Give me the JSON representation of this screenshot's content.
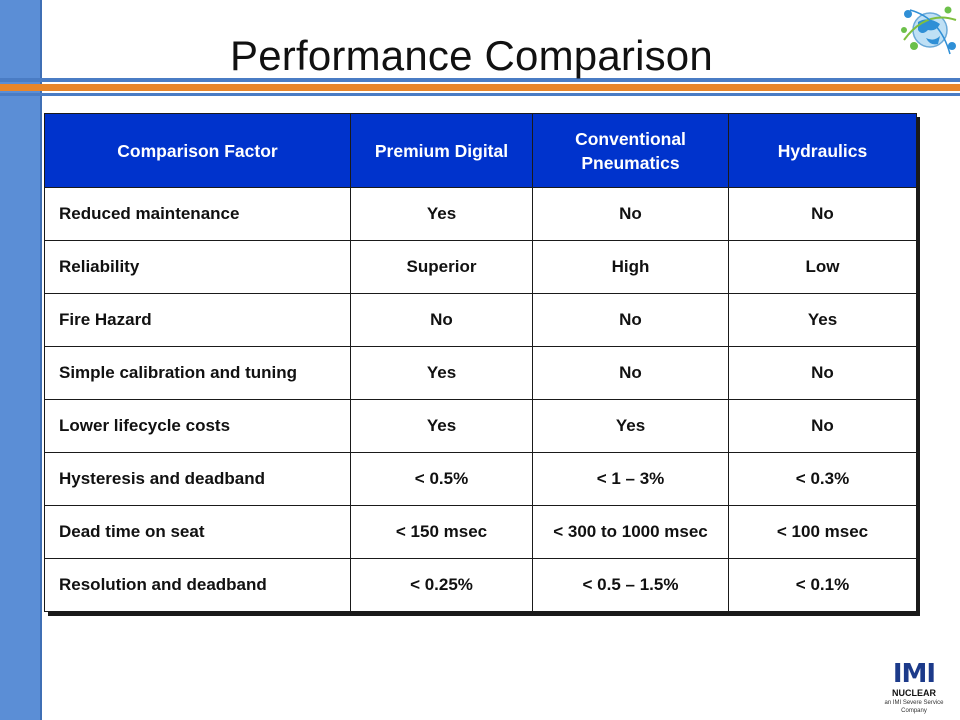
{
  "slide": {
    "title": "Performance Comparison"
  },
  "table": {
    "headers": [
      "Comparison Factor",
      "Premium Digital",
      "Conventional Pneumatics",
      "Hydraulics"
    ],
    "rows": [
      [
        "Reduced maintenance",
        "Yes",
        "No",
        "No"
      ],
      [
        "Reliability",
        "Superior",
        "High",
        "Low"
      ],
      [
        "Fire Hazard",
        "No",
        "No",
        "Yes"
      ],
      [
        "Simple calibration and tuning",
        "Yes",
        "No",
        "No"
      ],
      [
        "Lower lifecycle costs",
        "Yes",
        "Yes",
        "No"
      ],
      [
        "Hysteresis and deadband",
        "< 0.5%",
        "< 1 – 3%",
        "< 0.3%"
      ],
      [
        "Dead time on seat",
        "< 150 msec",
        "< 300 to 1000 msec",
        "< 100 msec"
      ],
      [
        "Resolution and deadband",
        "< 0.25%",
        "< 0.5 – 1.5%",
        "< 0.1%"
      ]
    ]
  },
  "logo": {
    "mark": "IMI",
    "name": "NUCLEAR",
    "tagline": "an IMI Severe Service Company"
  },
  "icons": {
    "corner": "globe-network-icon"
  },
  "colors": {
    "header_bg": "#0033cc",
    "left_bar": "#5b8ed6",
    "band_orange": "#e8862a",
    "band_blue": "#4a7cc4",
    "logo_blue": "#1c3a8a"
  }
}
